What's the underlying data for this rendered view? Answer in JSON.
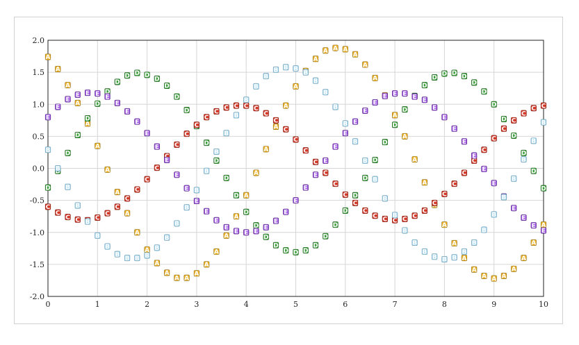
{
  "chart_data": {
    "type": "scatter",
    "xlim": [
      0,
      10
    ],
    "ylim": [
      -2,
      2
    ],
    "x_ticks": [
      "0",
      "1",
      "2",
      "3",
      "4",
      "5",
      "6",
      "7",
      "8",
      "9",
      "10"
    ],
    "y_ticks": [
      "2.0",
      "1.5",
      "1.0",
      "0.5",
      "0.0",
      "-0.5",
      "-1.0",
      "-1.5",
      "-2.0"
    ],
    "grid": true,
    "legend": "none",
    "series": [
      {
        "marker": "A",
        "color": "#f0b42a",
        "shadow": "#8a6a10",
        "x": [
          0,
          0.2,
          0.4,
          0.6,
          0.8,
          1,
          1.2,
          1.4,
          1.6,
          1.8,
          2,
          2.2,
          2.4,
          2.6,
          2.8,
          3,
          3.2,
          3.4,
          3.6,
          3.8,
          4,
          4.2,
          4.4,
          4.6,
          4.8,
          5,
          5.2,
          5.4,
          5.6,
          5.8,
          6,
          6.2,
          6.4,
          6.6,
          6.8,
          7,
          7.2,
          7.4,
          7.6,
          7.8,
          8,
          8.2,
          8.4,
          8.6,
          8.8,
          9,
          9.2,
          9.4,
          9.6,
          9.8,
          10
        ],
        "y": [
          1.74,
          1.55,
          1.3,
          1.02,
          0.7,
          0.35,
          -0.02,
          -0.37,
          -0.7,
          -1.0,
          -1.27,
          -1.48,
          -1.63,
          -1.71,
          -1.71,
          -1.64,
          -1.5,
          -1.3,
          -1.05,
          -0.75,
          -0.42,
          -0.07,
          0.3,
          0.65,
          0.98,
          1.28,
          1.52,
          1.71,
          1.84,
          1.88,
          1.86,
          1.78,
          1.62,
          1.41,
          1.14,
          0.83,
          0.5,
          0.14,
          -0.22,
          -0.57,
          -0.88,
          -1.17,
          -1.4,
          -1.58,
          -1.68,
          -1.72,
          -1.68,
          -1.57,
          -1.4,
          -1.16,
          -0.88
        ]
      },
      {
        "marker": "D",
        "color": "#3da23d",
        "shadow": "#1f5a1f",
        "x": [
          0,
          0.2,
          0.4,
          0.6,
          0.8,
          1,
          1.2,
          1.4,
          1.6,
          1.8,
          2,
          2.2,
          2.4,
          2.6,
          2.8,
          3,
          3.2,
          3.4,
          3.6,
          3.8,
          4,
          4.2,
          4.4,
          4.6,
          4.8,
          5,
          5.2,
          5.4,
          5.6,
          5.8,
          6,
          6.2,
          6.4,
          6.6,
          6.8,
          7,
          7.2,
          7.4,
          7.6,
          7.8,
          8,
          8.2,
          8.4,
          8.6,
          8.8,
          9,
          9.2,
          9.4,
          9.6,
          9.8,
          10
        ],
        "y": [
          -0.3,
          -0.04,
          0.24,
          0.52,
          0.78,
          1.01,
          1.2,
          1.35,
          1.45,
          1.49,
          1.46,
          1.4,
          1.29,
          1.12,
          0.91,
          0.66,
          0.4,
          0.12,
          -0.15,
          -0.42,
          -0.68,
          -0.89,
          -1.07,
          -1.2,
          -1.28,
          -1.31,
          -1.28,
          -1.2,
          -1.06,
          -0.88,
          -0.66,
          -0.42,
          -0.15,
          0.13,
          0.41,
          0.68,
          0.92,
          1.13,
          1.3,
          1.42,
          1.48,
          1.49,
          1.44,
          1.34,
          1.2,
          1.0,
          0.77,
          0.51,
          0.24,
          -0.04,
          -0.31
        ]
      },
      {
        "marker": "C",
        "color": "#d43a2a",
        "shadow": "#7a1e14",
        "x": [
          0,
          0.2,
          0.4,
          0.6,
          0.8,
          1,
          1.2,
          1.4,
          1.6,
          1.8,
          2,
          2.2,
          2.4,
          2.6,
          2.8,
          3,
          3.2,
          3.4,
          3.6,
          3.8,
          4,
          4.2,
          4.4,
          4.6,
          4.8,
          5,
          5.2,
          5.4,
          5.6,
          5.8,
          6,
          6.2,
          6.4,
          6.6,
          6.8,
          7,
          7.2,
          7.4,
          7.6,
          7.8,
          8,
          8.2,
          8.4,
          8.6,
          8.8,
          9,
          9.2,
          9.4,
          9.6,
          9.8,
          10
        ],
        "y": [
          -0.6,
          -0.69,
          -0.76,
          -0.8,
          -0.81,
          -0.77,
          -0.7,
          -0.6,
          -0.47,
          -0.33,
          -0.17,
          0.01,
          0.19,
          0.37,
          0.54,
          0.68,
          0.8,
          0.89,
          0.95,
          0.98,
          0.98,
          0.94,
          0.86,
          0.75,
          0.61,
          0.45,
          0.28,
          0.1,
          -0.07,
          -0.24,
          -0.41,
          -0.54,
          -0.66,
          -0.74,
          -0.79,
          -0.81,
          -0.79,
          -0.74,
          -0.66,
          -0.54,
          -0.4,
          -0.24,
          -0.07,
          0.12,
          0.29,
          0.47,
          0.62,
          0.75,
          0.86,
          0.94,
          0.98
        ]
      },
      {
        "marker": "E",
        "color": "#9b4fe0",
        "shadow": "#552c80",
        "x": [
          0,
          0.2,
          0.4,
          0.6,
          0.8,
          1,
          1.2,
          1.4,
          1.6,
          1.8,
          2,
          2.2,
          2.4,
          2.6,
          2.8,
          3,
          3.2,
          3.4,
          3.6,
          3.8,
          4,
          4.2,
          4.4,
          4.6,
          4.8,
          5,
          5.2,
          5.4,
          5.6,
          5.8,
          6,
          6.2,
          6.4,
          6.6,
          6.8,
          7,
          7.2,
          7.4,
          7.6,
          7.8,
          8,
          8.2,
          8.4,
          8.6,
          8.8,
          9,
          9.2,
          9.4,
          9.6,
          9.8,
          10
        ],
        "y": [
          0.8,
          0.96,
          1.08,
          1.15,
          1.18,
          1.17,
          1.12,
          1.02,
          0.89,
          0.73,
          0.55,
          0.34,
          0.13,
          -0.1,
          -0.31,
          -0.51,
          -0.67,
          -0.81,
          -0.92,
          -0.98,
          -1.0,
          -0.98,
          -0.92,
          -0.82,
          -0.68,
          -0.5,
          -0.3,
          -0.1,
          0.12,
          0.34,
          0.55,
          0.73,
          0.9,
          1.03,
          1.13,
          1.17,
          1.17,
          1.12,
          1.07,
          0.95,
          0.8,
          0.62,
          0.42,
          0.2,
          -0.01,
          -0.23,
          -0.44,
          -0.62,
          -0.77,
          -0.89,
          -0.97
        ]
      },
      {
        "marker": "B",
        "color": "#a8d8f0",
        "shadow": "#6a9ab2",
        "x": [
          0,
          0.2,
          0.4,
          0.6,
          0.8,
          1,
          1.2,
          1.4,
          1.6,
          1.8,
          2,
          2.2,
          2.4,
          2.6,
          2.8,
          3,
          3.2,
          3.4,
          3.6,
          3.8,
          4,
          4.2,
          4.4,
          4.6,
          4.8,
          5,
          5.2,
          5.4,
          5.6,
          5.8,
          6,
          6.2,
          6.4,
          6.6,
          6.8,
          7,
          7.2,
          7.4,
          7.6,
          7.8,
          8,
          8.2,
          8.4,
          8.6,
          8.8,
          9,
          9.2,
          9.4,
          9.6,
          9.8,
          10
        ],
        "y": [
          0.29,
          0.0,
          -0.29,
          -0.58,
          -0.83,
          -1.05,
          -1.22,
          -1.34,
          -1.4,
          -1.4,
          -1.36,
          -1.24,
          -1.08,
          -0.86,
          -0.61,
          -0.34,
          -0.04,
          0.26,
          0.55,
          0.83,
          1.07,
          1.28,
          1.44,
          1.54,
          1.58,
          1.56,
          1.5,
          1.37,
          1.19,
          0.96,
          0.7,
          0.42,
          0.12,
          -0.17,
          -0.47,
          -0.73,
          -0.97,
          -1.16,
          -1.3,
          -1.38,
          -1.42,
          -1.39,
          -1.3,
          -1.16,
          -0.96,
          -0.72,
          -0.45,
          -0.16,
          0.14,
          0.43,
          0.72
        ]
      }
    ]
  }
}
